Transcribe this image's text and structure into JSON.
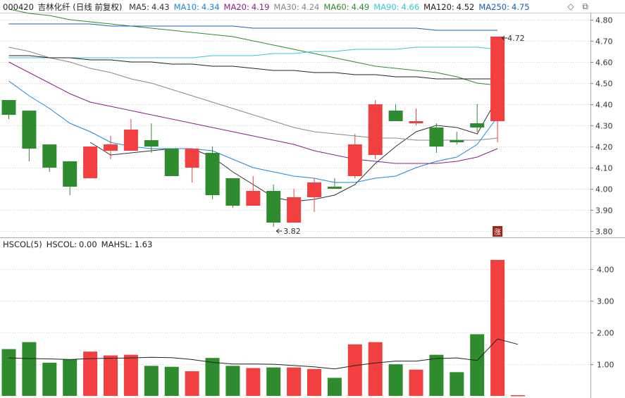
{
  "header": {
    "stock_code": "000420",
    "stock_name": "吉林化纤",
    "period_label": "(日线 前复权)",
    "ma_legend": [
      {
        "label": "MA5:",
        "value": "4.43",
        "color": "#333333"
      },
      {
        "label": "MA10:",
        "value": "4.34",
        "color": "#1e88d8"
      },
      {
        "label": "MA20:",
        "value": "4.19",
        "color": "#8b1e8b"
      },
      {
        "label": "MA30:",
        "value": "4.24",
        "color": "#888888"
      },
      {
        "label": "MA60:",
        "value": "4.49",
        "color": "#2e8b2e"
      },
      {
        "label": "MA90:",
        "value": "4.66",
        "color": "#35c9d6"
      },
      {
        "label": "MA120:",
        "value": "4.52",
        "color": "#222222"
      },
      {
        "label": "MA250:",
        "value": "4.75",
        "color": "#1a60b0"
      }
    ]
  },
  "sub_header": {
    "items": [
      {
        "label": "HSCOL(5)",
        "value": "",
        "color": "#222222"
      },
      {
        "label": "HSCOL:",
        "value": "0.00",
        "color": "#222222"
      },
      {
        "label": "MAHSL:",
        "value": "1.63",
        "color": "#222222"
      }
    ]
  },
  "icons": {
    "diamond": "diamond-icon",
    "restore": "restore-icon"
  },
  "colors": {
    "up": "#f24040",
    "down": "#2e8b2e",
    "grid": "#cfcfcf"
  },
  "annotations": {
    "low_label": "3.82",
    "high_label": "4.72",
    "zhang_badge": "涨"
  },
  "chart_data": [
    {
      "type": "candlestick",
      "ylim": [
        3.77,
        4.83
      ],
      "yticks": [
        "4.80",
        "4.70",
        "4.60",
        "4.50",
        "4.40",
        "4.30",
        "4.20",
        "4.10",
        "4.00",
        "3.90",
        "3.80"
      ],
      "candles": [
        {
          "o": 4.42,
          "h": 4.42,
          "l": 4.33,
          "c": 4.35
        },
        {
          "o": 4.37,
          "h": 4.37,
          "l": 4.13,
          "c": 4.19
        },
        {
          "o": 4.21,
          "h": 4.21,
          "l": 4.08,
          "c": 4.1
        },
        {
          "o": 4.13,
          "h": 4.13,
          "l": 3.97,
          "c": 4.01
        },
        {
          "o": 4.05,
          "h": 4.2,
          "l": 4.05,
          "c": 4.2
        },
        {
          "o": 4.18,
          "h": 4.25,
          "l": 4.14,
          "c": 4.21
        },
        {
          "o": 4.18,
          "h": 4.33,
          "l": 4.18,
          "c": 4.28
        },
        {
          "o": 4.23,
          "h": 4.31,
          "l": 4.17,
          "c": 4.2
        },
        {
          "o": 4.19,
          "h": 4.19,
          "l": 4.06,
          "c": 4.06
        },
        {
          "o": 4.1,
          "h": 4.19,
          "l": 4.03,
          "c": 4.19
        },
        {
          "o": 4.17,
          "h": 4.2,
          "l": 3.95,
          "c": 3.97
        },
        {
          "o": 4.05,
          "h": 4.05,
          "l": 3.91,
          "c": 3.92
        },
        {
          "o": 3.92,
          "h": 4.06,
          "l": 3.92,
          "c": 3.99
        },
        {
          "o": 3.99,
          "h": 4.02,
          "l": 3.82,
          "c": 3.84
        },
        {
          "o": 3.84,
          "h": 4.0,
          "l": 3.84,
          "c": 3.96
        },
        {
          "o": 3.96,
          "h": 4.05,
          "l": 3.89,
          "c": 4.03
        },
        {
          "o": 4.01,
          "h": 4.05,
          "l": 4.0,
          "c": 4.0
        },
        {
          "o": 4.06,
          "h": 4.26,
          "l": 4.05,
          "c": 4.21
        },
        {
          "o": 4.16,
          "h": 4.42,
          "l": 4.14,
          "c": 4.4
        },
        {
          "o": 4.37,
          "h": 4.4,
          "l": 4.32,
          "c": 4.32
        },
        {
          "o": 4.31,
          "h": 4.38,
          "l": 4.3,
          "c": 4.32
        },
        {
          "o": 4.29,
          "h": 4.31,
          "l": 4.17,
          "c": 4.2
        },
        {
          "o": 4.23,
          "h": 4.27,
          "l": 4.21,
          "c": 4.22
        },
        {
          "o": 4.31,
          "h": 4.4,
          "l": 4.27,
          "c": 4.29
        },
        {
          "o": 4.32,
          "h": 4.72,
          "l": 4.22,
          "c": 4.72
        }
      ],
      "ma_lines": [
        {
          "name": "MA5",
          "color": "#333333",
          "values": [
            null,
            null,
            null,
            null,
            4.22,
            4.16,
            4.17,
            4.18,
            4.19,
            4.19,
            4.15,
            4.08,
            4.02,
            3.96,
            3.94,
            3.95,
            3.97,
            4.02,
            4.12,
            4.2,
            4.27,
            4.3,
            4.29,
            4.26,
            4.43
          ]
        },
        {
          "name": "MA10",
          "color": "#1e88d8",
          "values": [
            4.51,
            4.44,
            4.38,
            4.31,
            4.27,
            4.22,
            4.2,
            4.19,
            4.19,
            4.19,
            4.18,
            4.14,
            4.1,
            4.08,
            4.06,
            4.05,
            4.03,
            4.03,
            4.05,
            4.06,
            4.1,
            4.13,
            4.15,
            4.21,
            4.34
          ]
        },
        {
          "name": "MA20",
          "color": "#8b1e8b",
          "values": [
            4.6,
            4.55,
            4.5,
            4.45,
            4.41,
            4.39,
            4.37,
            4.35,
            4.33,
            4.31,
            4.29,
            4.27,
            4.25,
            4.23,
            4.21,
            4.18,
            4.16,
            4.14,
            4.13,
            4.12,
            4.12,
            4.12,
            4.13,
            4.15,
            4.19
          ]
        },
        {
          "name": "MA30",
          "color": "#888888",
          "values": [
            4.67,
            4.65,
            4.62,
            4.6,
            4.57,
            4.55,
            4.52,
            4.5,
            4.47,
            4.44,
            4.41,
            4.38,
            4.35,
            4.32,
            4.29,
            4.27,
            4.26,
            4.25,
            4.24,
            4.24,
            4.23,
            4.23,
            4.23,
            4.23,
            4.24
          ]
        },
        {
          "name": "MA60",
          "color": "#2e8b2e",
          "values": [
            4.85,
            4.83,
            4.82,
            4.8,
            4.79,
            4.78,
            4.77,
            4.76,
            4.75,
            4.74,
            4.73,
            4.72,
            4.7,
            4.68,
            4.66,
            4.64,
            4.62,
            4.6,
            4.58,
            4.57,
            4.56,
            4.55,
            4.53,
            4.5,
            4.49
          ]
        },
        {
          "name": "MA90",
          "color": "#35c9d6",
          "values": [
            4.62,
            4.62,
            4.62,
            4.62,
            4.62,
            4.62,
            4.62,
            4.62,
            4.62,
            4.62,
            4.63,
            4.63,
            4.63,
            4.64,
            4.64,
            4.65,
            4.65,
            4.66,
            4.66,
            4.66,
            4.67,
            4.67,
            4.67,
            4.67,
            4.66
          ]
        },
        {
          "name": "MA120",
          "color": "#222222",
          "values": [
            4.63,
            4.63,
            4.62,
            4.62,
            4.61,
            4.61,
            4.6,
            4.6,
            4.59,
            4.59,
            4.58,
            4.58,
            4.57,
            4.56,
            4.56,
            4.55,
            4.55,
            4.54,
            4.54,
            4.53,
            4.53,
            4.52,
            4.52,
            4.52,
            4.52
          ]
        },
        {
          "name": "MA250",
          "color": "#1a60b0",
          "values": [
            4.78,
            4.78,
            4.78,
            4.78,
            4.78,
            4.77,
            4.77,
            4.77,
            4.77,
            4.77,
            4.77,
            4.77,
            4.76,
            4.76,
            4.76,
            4.76,
            4.76,
            4.76,
            4.76,
            4.76,
            4.76,
            4.75,
            4.75,
            4.75,
            4.75
          ]
        }
      ]
    },
    {
      "type": "bar",
      "ylim": [
        0,
        4.5
      ],
      "yticks": [
        "4.00",
        "3.00",
        "2.00",
        "1.00"
      ],
      "values": [
        1.48,
        1.7,
        1.05,
        1.15,
        1.4,
        1.28,
        1.3,
        0.95,
        0.92,
        0.78,
        1.2,
        0.95,
        0.88,
        0.9,
        0.9,
        0.85,
        0.57,
        1.63,
        1.7,
        1.0,
        0.83,
        1.3,
        0.75,
        1.95,
        4.3
      ],
      "trailing_value": 0.0,
      "ma_line": {
        "name": "MAHSL",
        "color": "#222222",
        "values": [
          1.2,
          1.18,
          1.17,
          1.15,
          1.18,
          1.19,
          1.2,
          1.22,
          1.21,
          1.15,
          1.06,
          1.01,
          1.01,
          1.0,
          0.96,
          0.92,
          0.85,
          0.96,
          1.04,
          1.1,
          1.1,
          1.18,
          1.2,
          1.12,
          1.8
        ]
      }
    }
  ]
}
